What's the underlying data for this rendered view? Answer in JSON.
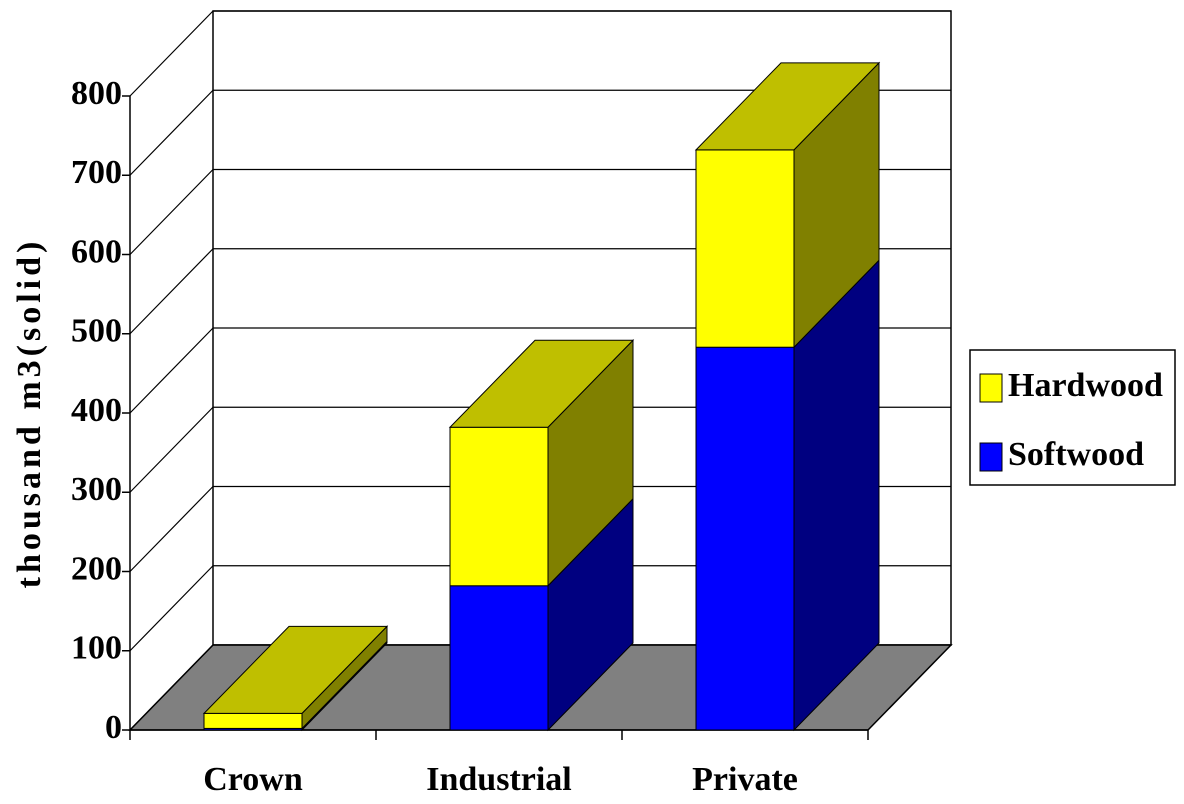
{
  "chart_data": {
    "type": "bar",
    "stacked": true,
    "y_label": "thousand m3(solid)",
    "categories": [
      "Crown",
      "Industrial",
      "Private"
    ],
    "series": [
      {
        "name": "Softwood",
        "color": "#0000ff",
        "values": [
          2,
          182,
          483
        ]
      },
      {
        "name": "Hardwood",
        "color": "#ffff00",
        "values": [
          19,
          200,
          249
        ]
      }
    ],
    "ylim": [
      0,
      800
    ],
    "yticks": [
      0,
      100,
      200,
      300,
      400,
      500,
      600,
      700,
      800
    ],
    "grid": true
  }
}
